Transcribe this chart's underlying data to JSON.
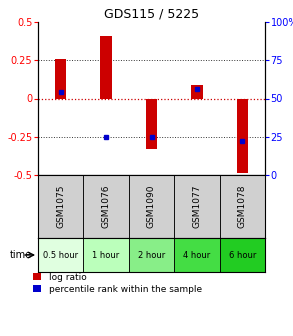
{
  "title": "GDS115 / 5225",
  "samples": [
    "GSM1075",
    "GSM1076",
    "GSM1090",
    "GSM1077",
    "GSM1078"
  ],
  "time_labels": [
    "0.5 hour",
    "1 hour",
    "2 hour",
    "4 hour",
    "6 hour"
  ],
  "log_ratios": [
    0.26,
    0.41,
    -0.33,
    0.09,
    -0.49
  ],
  "percentile_ranks": [
    0.54,
    0.25,
    0.25,
    0.56,
    0.22
  ],
  "ylim": [
    -0.5,
    0.5
  ],
  "yticks": [
    -0.5,
    -0.25,
    0.0,
    0.25,
    0.5
  ],
  "y2ticks": [
    0,
    25,
    50,
    75,
    100
  ],
  "bar_color": "#cc0000",
  "dot_color": "#0000cc",
  "bg_color": "#ffffff",
  "zero_line_color": "#cc0000",
  "sample_bg": "#d0d0d0",
  "time_bg_colors": [
    "#e0ffe0",
    "#bbffbb",
    "#88ee88",
    "#44dd44",
    "#22cc22"
  ],
  "title_fontsize": 9,
  "tick_fontsize": 7,
  "bar_width": 0.25
}
